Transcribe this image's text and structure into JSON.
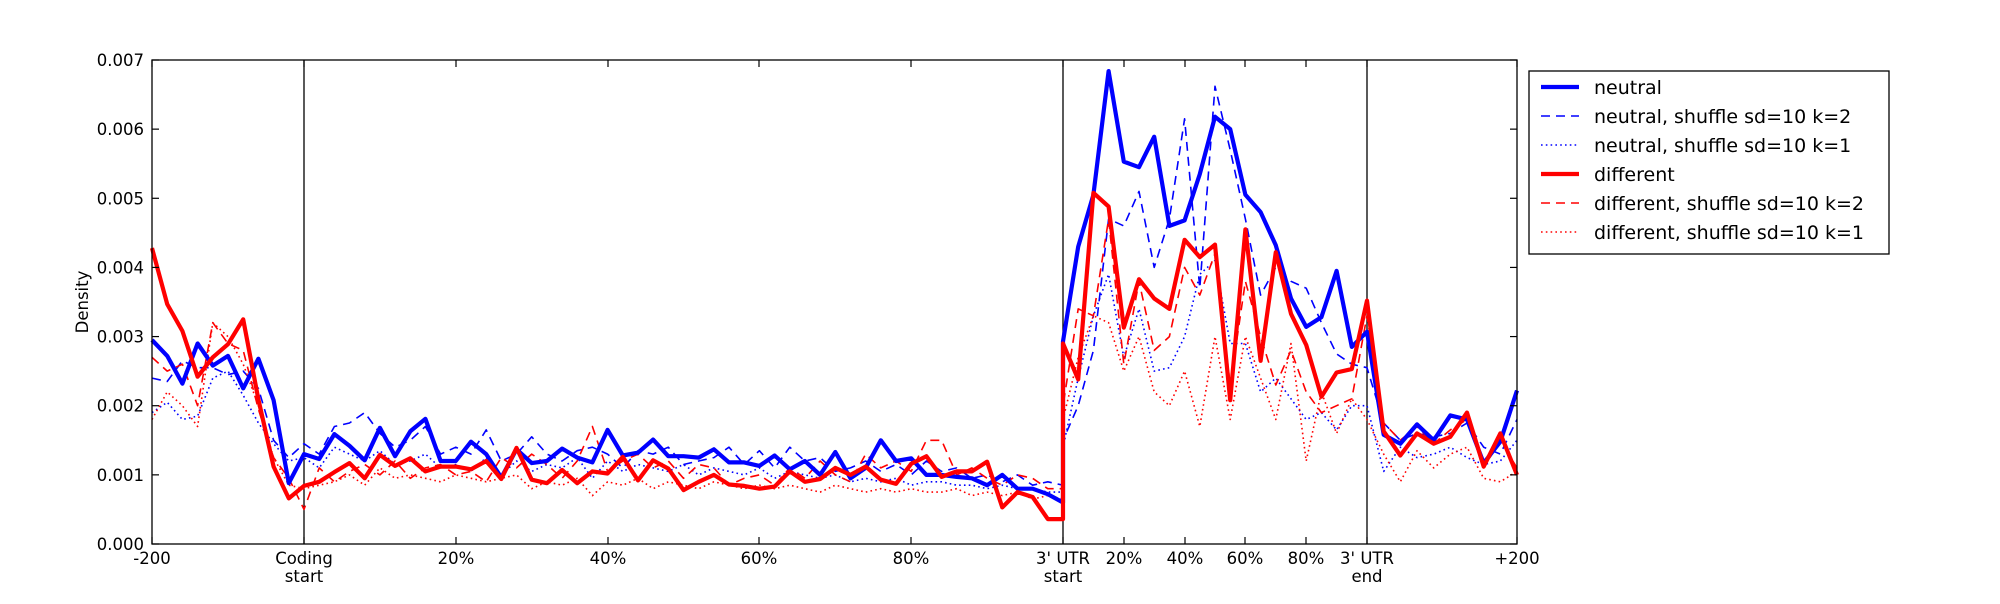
{
  "chart_data": {
    "type": "line",
    "ylabel": "Density",
    "xlabel": "",
    "ylim": [
      0,
      0.007
    ],
    "y_ticks": [
      "0.000",
      "0.001",
      "0.002",
      "0.003",
      "0.004",
      "0.005",
      "0.006",
      "0.007"
    ],
    "x_ticks": [
      "-200",
      "Coding\nstart",
      "20%",
      "40%",
      "60%",
      "80%",
      "3' UTR\nstart",
      "20%",
      "40%",
      "60%",
      "80%",
      "3' UTR\nend",
      "+200"
    ],
    "region_boundaries": [
      "Coding start",
      "3' UTR start",
      "3' UTR end"
    ],
    "grid": false,
    "legend_position": "upper-right, outside plot",
    "series": [
      {
        "name": "neutral",
        "color": "#0000ff",
        "style": "solid-thick",
        "values": [
          0.00295,
          0.00272,
          0.00232,
          0.0029,
          0.00258,
          0.00272,
          0.00225,
          0.00268,
          0.00208,
          0.00088,
          0.0013,
          0.00123,
          0.00159,
          0.00142,
          0.00121,
          0.00168,
          0.00127,
          0.00163,
          0.00181,
          0.0012,
          0.0012,
          0.00148,
          0.0013,
          0.00096,
          0.00137,
          0.00117,
          0.0012,
          0.00138,
          0.00125,
          0.00118,
          0.00165,
          0.00128,
          0.00132,
          0.00151,
          0.00127,
          0.00127,
          0.00125,
          0.00137,
          0.00118,
          0.00118,
          0.00113,
          0.00128,
          0.00108,
          0.0012,
          0.001,
          0.00133,
          0.00095,
          0.0011,
          0.0015,
          0.0012,
          0.00124,
          0.001,
          0.001,
          0.00097,
          0.00095,
          0.00085,
          0.001,
          0.0008,
          0.0008,
          0.00072,
          0.0006,
          0.00293,
          0.0043,
          0.00505,
          0.00684,
          0.00553,
          0.00545,
          0.00589,
          0.0046,
          0.00468,
          0.00535,
          0.00618,
          0.006,
          0.00505,
          0.0048,
          0.00432,
          0.00355,
          0.00314,
          0.00328,
          0.00395,
          0.00285,
          0.00307,
          0.00158,
          0.00145,
          0.00173,
          0.0015,
          0.00186,
          0.0018,
          0.00117,
          0.00148,
          0.00222
        ]
      },
      {
        "name": "neutral, shuffle sd=10 k=2",
        "color": "#0000ff",
        "style": "dashed",
        "values": [
          0.0024,
          0.00235,
          0.00265,
          0.00255,
          0.00255,
          0.00245,
          0.0025,
          0.00225,
          0.0015,
          0.00125,
          0.00145,
          0.0013,
          0.0017,
          0.00175,
          0.0019,
          0.0016,
          0.0014,
          0.0015,
          0.0017,
          0.0013,
          0.0014,
          0.0013,
          0.00165,
          0.0012,
          0.0013,
          0.00155,
          0.0013,
          0.0012,
          0.00135,
          0.0014,
          0.0013,
          0.0011,
          0.00135,
          0.0013,
          0.0014,
          0.00115,
          0.0012,
          0.00125,
          0.0014,
          0.00115,
          0.00135,
          0.0011,
          0.0014,
          0.0012,
          0.00125,
          0.00105,
          0.0011,
          0.0012,
          0.00105,
          0.00115,
          0.001,
          0.0012,
          0.00105,
          0.0011,
          0.00095,
          0.001,
          0.0009,
          0.001,
          0.00085,
          0.0009,
          0.00085,
          0.0015,
          0.002,
          0.0028,
          0.0047,
          0.0046,
          0.0051,
          0.004,
          0.0047,
          0.00615,
          0.0037,
          0.00662,
          0.0057,
          0.0047,
          0.0036,
          0.004,
          0.0038,
          0.0037,
          0.0032,
          0.00275,
          0.0026,
          0.00255,
          0.00175,
          0.0015,
          0.0016,
          0.00155,
          0.0016,
          0.00175,
          0.0014,
          0.0013,
          0.0018
        ]
      },
      {
        "name": "neutral, shuffle sd=10 k=1",
        "color": "#0000ff",
        "style": "dotted",
        "values": [
          0.0019,
          0.00205,
          0.0018,
          0.00185,
          0.0024,
          0.0025,
          0.00215,
          0.00175,
          0.00145,
          0.0012,
          0.00125,
          0.0011,
          0.0014,
          0.0013,
          0.0012,
          0.00135,
          0.00115,
          0.0012,
          0.0013,
          0.0011,
          0.00115,
          0.00105,
          0.00125,
          0.001,
          0.0012,
          0.00105,
          0.00115,
          0.0011,
          0.00125,
          0.00095,
          0.0012,
          0.00105,
          0.00115,
          0.0011,
          0.00105,
          0.00115,
          0.001,
          0.0011,
          0.00105,
          0.001,
          0.0011,
          0.00095,
          0.00105,
          0.001,
          0.00095,
          0.001,
          0.0009,
          0.00095,
          0.0009,
          0.00095,
          0.00085,
          0.0009,
          0.0009,
          0.00085,
          0.00085,
          0.0008,
          0.00085,
          0.0008,
          0.0008,
          0.00075,
          0.00075,
          0.0014,
          0.0024,
          0.0033,
          0.0039,
          0.0027,
          0.0034,
          0.0025,
          0.00255,
          0.003,
          0.0039,
          0.0041,
          0.0029,
          0.0029,
          0.0022,
          0.0024,
          0.0021,
          0.0018,
          0.0019,
          0.00165,
          0.002,
          0.002,
          0.00105,
          0.0014,
          0.00125,
          0.0013,
          0.0014,
          0.00125,
          0.00115,
          0.0012,
          0.0015
        ]
      },
      {
        "name": "different",
        "color": "#ff0000",
        "style": "solid-thick",
        "values": [
          0.00428,
          0.00347,
          0.00308,
          0.00242,
          0.0027,
          0.00289,
          0.00325,
          0.00209,
          0.00112,
          0.00066,
          0.00084,
          0.0009,
          0.00104,
          0.00117,
          0.00095,
          0.00129,
          0.00113,
          0.00124,
          0.00105,
          0.00112,
          0.00112,
          0.00108,
          0.0012,
          0.00094,
          0.00139,
          0.00093,
          0.00088,
          0.00107,
          0.00088,
          0.00105,
          0.00102,
          0.00126,
          0.00092,
          0.00121,
          0.00109,
          0.00078,
          0.0009,
          0.001,
          0.00086,
          0.00084,
          0.0008,
          0.00083,
          0.00105,
          0.0009,
          0.00094,
          0.0011,
          0.001,
          0.00112,
          0.00093,
          0.00087,
          0.00116,
          0.00127,
          0.00097,
          0.00105,
          0.00105,
          0.00119,
          0.00053,
          0.00075,
          0.00068,
          0.00036,
          0.00036,
          0.0029,
          0.00238,
          0.00508,
          0.00488,
          0.00313,
          0.00383,
          0.00355,
          0.0034,
          0.0044,
          0.00415,
          0.00433,
          0.00208,
          0.00455,
          0.00265,
          0.00422,
          0.00333,
          0.00288,
          0.00213,
          0.00248,
          0.00253,
          0.00352,
          0.00163,
          0.00128,
          0.0016,
          0.00145,
          0.00155,
          0.0019,
          0.00112,
          0.0016,
          0.001
        ]
      },
      {
        "name": "different, shuffle sd=10 k=2",
        "color": "#ff0000",
        "style": "dashed",
        "values": [
          0.0027,
          0.0025,
          0.0026,
          0.002,
          0.0032,
          0.0029,
          0.0028,
          0.00195,
          0.00125,
          0.00095,
          0.0005,
          0.0011,
          0.0009,
          0.00105,
          0.00115,
          0.001,
          0.0012,
          0.00095,
          0.0011,
          0.00115,
          0.001,
          0.00105,
          0.0009,
          0.00125,
          0.0011,
          0.0013,
          0.00115,
          0.00095,
          0.0012,
          0.0017,
          0.00105,
          0.0012,
          0.0013,
          0.0011,
          0.0012,
          0.00095,
          0.00115,
          0.0011,
          0.00085,
          0.00095,
          0.001,
          0.00085,
          0.0011,
          0.00095,
          0.0012,
          0.001,
          0.0009,
          0.0013,
          0.0011,
          0.0012,
          0.00105,
          0.0015,
          0.0015,
          0.001,
          0.0011,
          0.00095,
          0.00085,
          0.001,
          0.00095,
          0.0008,
          0.0008,
          0.002,
          0.0034,
          0.0033,
          0.0047,
          0.0026,
          0.0038,
          0.0028,
          0.003,
          0.004,
          0.0036,
          0.0042,
          0.0023,
          0.0038,
          0.003,
          0.0023,
          0.0028,
          0.0022,
          0.0019,
          0.002,
          0.0021,
          0.0033,
          0.00175,
          0.0015,
          0.0017,
          0.00145,
          0.00165,
          0.0018,
          0.0011,
          0.0015,
          0.0011
        ]
      },
      {
        "name": "different, shuffle sd=10 k=1",
        "color": "#ff0000",
        "style": "dotted",
        "values": [
          0.0018,
          0.0022,
          0.002,
          0.0017,
          0.0032,
          0.003,
          0.0026,
          0.002,
          0.00125,
          0.00085,
          0.0008,
          0.00085,
          0.0009,
          0.001,
          0.00085,
          0.0011,
          0.00095,
          0.001,
          0.00095,
          0.0009,
          0.001,
          0.00095,
          0.0009,
          0.00095,
          0.001,
          0.0008,
          0.0009,
          0.00085,
          0.00095,
          0.0007,
          0.0009,
          0.00085,
          0.00095,
          0.0008,
          0.0009,
          0.00085,
          0.0008,
          0.0009,
          0.00085,
          0.0008,
          0.00085,
          0.0008,
          0.00085,
          0.0008,
          0.00075,
          0.00085,
          0.0008,
          0.00075,
          0.0008,
          0.00075,
          0.0008,
          0.00075,
          0.00075,
          0.0008,
          0.0007,
          0.00075,
          0.0007,
          0.00075,
          0.00065,
          0.0007,
          0.00065,
          0.0018,
          0.0027,
          0.0033,
          0.0032,
          0.0025,
          0.003,
          0.0022,
          0.002,
          0.0025,
          0.0017,
          0.003,
          0.0018,
          0.003,
          0.0024,
          0.0018,
          0.0029,
          0.0012,
          0.0022,
          0.0016,
          0.0021,
          0.0018,
          0.0013,
          0.0009,
          0.00135,
          0.0011,
          0.0013,
          0.0014,
          0.00095,
          0.0009,
          0.00105
        ]
      }
    ]
  }
}
